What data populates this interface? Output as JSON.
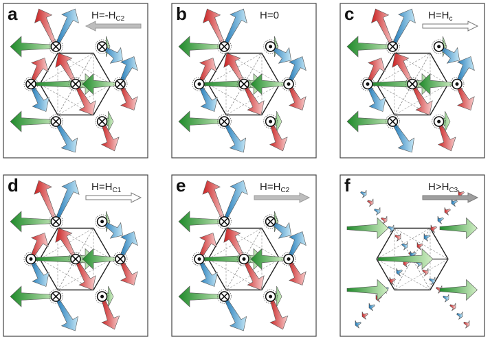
{
  "panels": [
    {
      "id": "a",
      "label": "a",
      "field_main": "H=-H",
      "field_sub": "C2",
      "arrow": "left",
      "arrow_fill": "#bdbdbd",
      "arrow_stroke": "#9a9a9a",
      "dots": [
        "cross",
        "cross",
        "cross",
        "cross",
        "cross",
        "cross",
        "cross"
      ]
    },
    {
      "id": "b",
      "label": "b",
      "field_main": "H=0",
      "field_sub": "",
      "arrow": "none",
      "arrow_fill": "#ffffff",
      "arrow_stroke": "#777777",
      "dots": [
        "cross",
        "dot",
        "dot",
        "cross",
        "dot",
        "cross",
        "dot"
      ]
    },
    {
      "id": "c",
      "label": "c",
      "field_main": "H=H",
      "field_sub": "c",
      "arrow": "right",
      "arrow_fill": "#ffffff",
      "arrow_stroke": "#777777",
      "dots": [
        "cross",
        "dot",
        "dot",
        "cross",
        "dot",
        "cross",
        "dot"
      ]
    },
    {
      "id": "d",
      "label": "d",
      "field_main": "H=H",
      "field_sub": "C1",
      "arrow": "right",
      "arrow_fill": "#ffffff",
      "arrow_stroke": "#777777",
      "dots": [
        "cross",
        "dot",
        "dot",
        "cross",
        "cross",
        "cross",
        "dot"
      ]
    },
    {
      "id": "e",
      "label": "e",
      "field_main": "H=H",
      "field_sub": "C2",
      "arrow": "right",
      "arrow_fill": "#bdbdbd",
      "arrow_stroke": "#9a9a9a",
      "dots": [
        "cross",
        "cross",
        "dot",
        "dot",
        "dot",
        "cross",
        "dot"
      ]
    },
    {
      "id": "f",
      "label": "f",
      "field_main": "H>H",
      "field_sub": "C3",
      "arrow": "right",
      "arrow_fill": "#9e9e9e",
      "arrow_stroke": "#7a7a7a",
      "dots": [],
      "fan": true
    }
  ],
  "colors": {
    "green_dark": "#1f8a2a",
    "green_light": "#cfeec2",
    "red_dark": "#c81e1e",
    "red_light": "#f6c7c7",
    "blue_dark": "#1673b5",
    "blue_light": "#bfe3f3",
    "frame": "#444444",
    "lattice": "#222222"
  }
}
